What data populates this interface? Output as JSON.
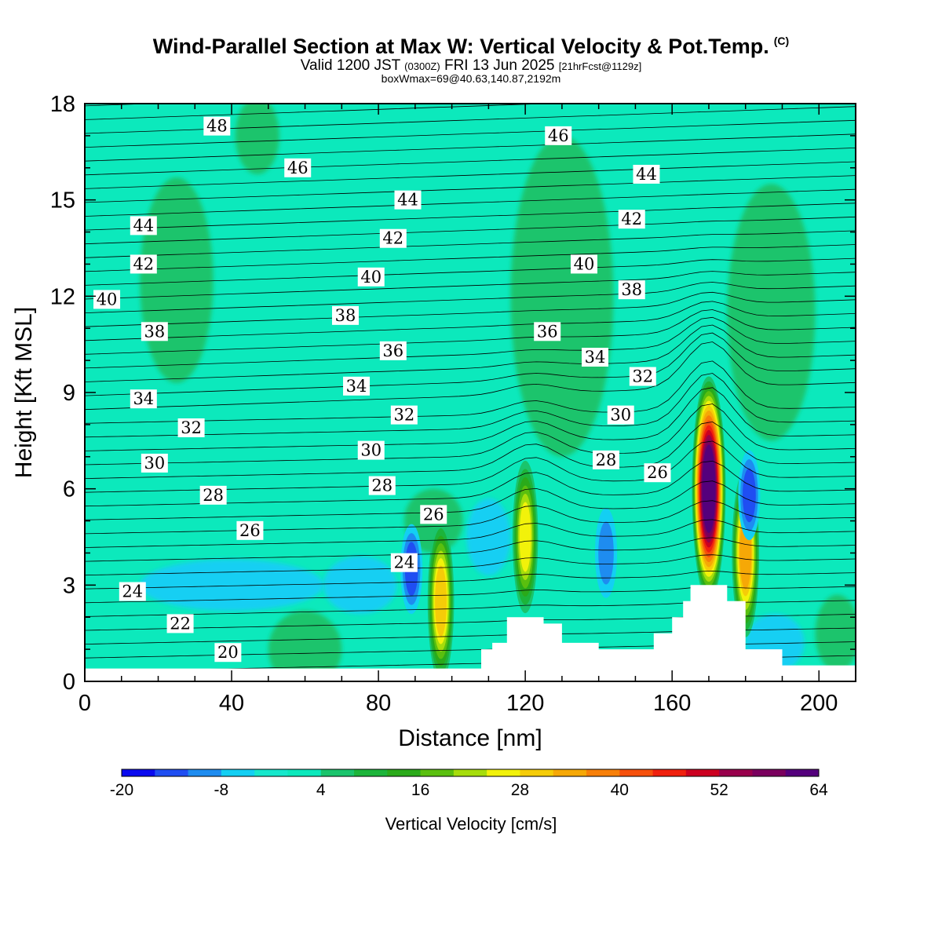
{
  "header": {
    "title": "Wind-Parallel Section at Max W: Vertical Velocity & Pot.Temp.",
    "copyright": "(C)",
    "valid_prefix": "Valid 1200 JST",
    "utc": "(0300Z)",
    "valid_date": "FRI 13 Jun 2025",
    "forecast": "[21hrFcst@1129z]",
    "box_info": "boxWmax=69@40.63,140.87,2192m"
  },
  "chart_data": {
    "type": "heatmap",
    "title": "Wind-Parallel Section at Max W: Vertical Velocity & Pot.Temp.",
    "xlabel": "Distance [nm]",
    "ylabel": "Height [Kft MSL]",
    "xlim": [
      0,
      210
    ],
    "ylim": [
      0,
      18
    ],
    "x_ticks": [
      "0",
      "40",
      "80",
      "120",
      "160",
      "200"
    ],
    "y_ticks": [
      "0",
      "3",
      "6",
      "9",
      "12",
      "15",
      "18"
    ],
    "colorbar": {
      "label": "Vertical Velocity [cm/s]",
      "tick_labels": [
        "-20",
        "-8",
        "4",
        "16",
        "28",
        "40",
        "52",
        "64"
      ],
      "levels": [
        -20,
        -16,
        -12,
        -8,
        -4,
        0,
        4,
        8,
        12,
        16,
        20,
        24,
        28,
        32,
        36,
        40,
        44,
        48,
        52,
        56,
        60,
        64
      ],
      "colors": [
        "#0a0aef",
        "#1f4ef2",
        "#1e8cf0",
        "#13cff3",
        "#16e8cc",
        "#0ce9bc",
        "#1ac46c",
        "#1cb43a",
        "#2aaa1a",
        "#5abf0f",
        "#a6dd0c",
        "#f2f20a",
        "#f5cc08",
        "#f6a806",
        "#f77f08",
        "#f6500c",
        "#f0200e",
        "#cc0020",
        "#98004c",
        "#7a005e",
        "#54007c"
      ]
    },
    "background_color": "#0ce9bc",
    "terrain_profile": {
      "x": [
        0,
        107,
        108,
        111,
        115,
        125,
        130,
        140,
        155,
        160,
        163,
        165,
        170,
        175,
        180,
        190,
        210
      ],
      "height": [
        0.4,
        0.4,
        1.0,
        1.2,
        2.0,
        1.8,
        1.2,
        1.0,
        1.5,
        2.0,
        2.5,
        3.0,
        3.0,
        2.5,
        1.0,
        0.5,
        0.5
      ]
    },
    "updraft_cells": [
      {
        "x": 97,
        "height": 2.5,
        "max_w": 32
      },
      {
        "x": 120,
        "height": 4.5,
        "max_w": 28
      },
      {
        "x": 170,
        "height": 6.0,
        "max_w": 64
      },
      {
        "x": 180,
        "height": 4.0,
        "max_w": 36
      }
    ],
    "downdraft_cells": [
      {
        "x": 89,
        "height": 3.5,
        "min_w": -16
      },
      {
        "x": 142,
        "height": 4.0,
        "min_w": -12
      },
      {
        "x": 181,
        "height": 5.8,
        "min_w": -16
      }
    ],
    "theta_contour_labels": [
      {
        "value": "48",
        "x": 36,
        "height": 17.3
      },
      {
        "value": "46",
        "x": 58,
        "height": 16.0
      },
      {
        "value": "46",
        "x": 129,
        "height": 17.0
      },
      {
        "value": "44",
        "x": 16,
        "height": 14.2
      },
      {
        "value": "44",
        "x": 88,
        "height": 15.0
      },
      {
        "value": "44",
        "x": 153,
        "height": 15.8
      },
      {
        "value": "42",
        "x": 16,
        "height": 13.0
      },
      {
        "value": "42",
        "x": 84,
        "height": 13.8
      },
      {
        "value": "42",
        "x": 149,
        "height": 14.4
      },
      {
        "value": "40",
        "x": 6,
        "height": 11.9
      },
      {
        "value": "40",
        "x": 78,
        "height": 12.6
      },
      {
        "value": "40",
        "x": 136,
        "height": 13.0
      },
      {
        "value": "38",
        "x": 19,
        "height": 10.9
      },
      {
        "value": "38",
        "x": 71,
        "height": 11.4
      },
      {
        "value": "38",
        "x": 149,
        "height": 12.2
      },
      {
        "value": "36",
        "x": 84,
        "height": 10.3
      },
      {
        "value": "36",
        "x": 126,
        "height": 10.9
      },
      {
        "value": "34",
        "x": 16,
        "height": 8.8
      },
      {
        "value": "34",
        "x": 74,
        "height": 9.2
      },
      {
        "value": "34",
        "x": 139,
        "height": 10.1
      },
      {
        "value": "32",
        "x": 29,
        "height": 7.9
      },
      {
        "value": "32",
        "x": 87,
        "height": 8.3
      },
      {
        "value": "32",
        "x": 152,
        "height": 9.5
      },
      {
        "value": "30",
        "x": 19,
        "height": 6.8
      },
      {
        "value": "30",
        "x": 78,
        "height": 7.2
      },
      {
        "value": "30",
        "x": 146,
        "height": 8.3
      },
      {
        "value": "28",
        "x": 35,
        "height": 5.8
      },
      {
        "value": "28",
        "x": 81,
        "height": 6.1
      },
      {
        "value": "28",
        "x": 142,
        "height": 6.9
      },
      {
        "value": "26",
        "x": 45,
        "height": 4.7
      },
      {
        "value": "26",
        "x": 95,
        "height": 5.2
      },
      {
        "value": "26",
        "x": 156,
        "height": 6.5
      },
      {
        "value": "24",
        "x": 13,
        "height": 2.8
      },
      {
        "value": "24",
        "x": 87,
        "height": 3.7
      },
      {
        "value": "22",
        "x": 26,
        "height": 1.8
      },
      {
        "value": "20",
        "x": 39,
        "height": 0.9
      }
    ]
  }
}
